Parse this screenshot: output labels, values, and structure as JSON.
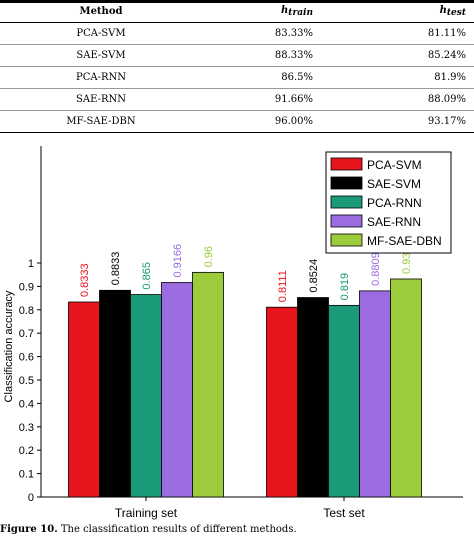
{
  "table": {
    "headers": {
      "method": "Method",
      "train_main": "h",
      "train_sub": "train",
      "test_main": "h",
      "test_sub": "test"
    },
    "rows": [
      {
        "method": "PCA-SVM",
        "train": "83.33%",
        "test": "81.11%"
      },
      {
        "method": "SAE-SVM",
        "train": "88.33%",
        "test": "85.24%"
      },
      {
        "method": "PCA-RNN",
        "train": "86.5%",
        "test": "81.9%"
      },
      {
        "method": "SAE-RNN",
        "train": "91.66%",
        "test": "88.09%"
      },
      {
        "method": "MF-SAE-DBN",
        "train": "96.00%",
        "test": "93.17%"
      }
    ]
  },
  "chart_data": {
    "type": "bar",
    "categories": [
      "Training set",
      "Test set"
    ],
    "ylabel": "Classification accuracy",
    "xlabel": "",
    "ylim": [
      0,
      1.5
    ],
    "yticks": [
      "0",
      "0.1",
      "0.2",
      "0.3",
      "0.4",
      "0.5",
      "0.6",
      "0.7",
      "0.8",
      "0.9",
      "1"
    ],
    "ytick_values": [
      0,
      0.1,
      0.2,
      0.3,
      0.4,
      0.5,
      0.6,
      0.7,
      0.8,
      0.9,
      1
    ],
    "legend_position": "top-right",
    "series": [
      {
        "name": "PCA-SVM",
        "color": "#e8141c",
        "values": [
          0.8333,
          0.8111
        ],
        "labels": [
          "0.8333",
          "0.8111"
        ]
      },
      {
        "name": "SAE-SVM",
        "color": "#000000",
        "values": [
          0.8833,
          0.8524
        ],
        "labels": [
          "0.8833",
          "0.8524"
        ]
      },
      {
        "name": "PCA-RNN",
        "color": "#1a9a78",
        "values": [
          0.865,
          0.819
        ],
        "labels": [
          "0.865",
          "0.819"
        ]
      },
      {
        "name": "SAE-RNN",
        "color": "#9b6be0",
        "values": [
          0.9166,
          0.8809
        ],
        "labels": [
          "0.9166",
          "0.8809"
        ]
      },
      {
        "name": "MF-SAE-DBN",
        "color": "#9ccc3c",
        "values": [
          0.96,
          0.9317
        ],
        "labels": [
          "0.96",
          "0.9317"
        ]
      }
    ]
  },
  "caption": {
    "label": "Figure 10.",
    "text": "The classification results of different methods."
  }
}
